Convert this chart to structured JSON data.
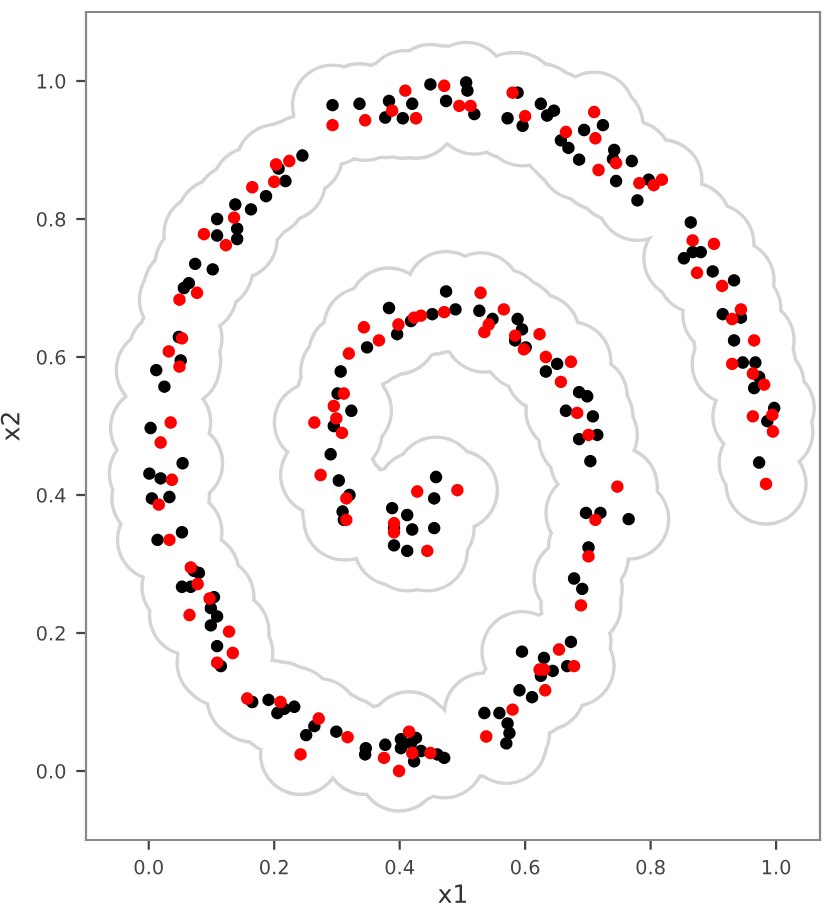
{
  "chart_data": {
    "type": "scatter",
    "xlabel": "x1",
    "ylabel": "x2",
    "xlim": [
      -0.1,
      1.07
    ],
    "ylim": [
      -0.1,
      1.1
    ],
    "xticks": [
      {
        "value": 0,
        "label": "0.0"
      },
      {
        "value": 0.2,
        "label": "0.2"
      },
      {
        "value": 0.4,
        "label": "0.4"
      },
      {
        "value": 0.6,
        "label": "0.6"
      },
      {
        "value": 0.8,
        "label": "0.8"
      },
      {
        "value": 1,
        "label": "1.0"
      }
    ],
    "yticks": [
      {
        "value": 0,
        "label": "0.0"
      },
      {
        "value": 0.2,
        "label": "0.2"
      },
      {
        "value": 0.4,
        "label": "0.4"
      },
      {
        "value": 0.6,
        "label": "0.6"
      },
      {
        "value": 0.8,
        "label": "0.8"
      },
      {
        "value": 1,
        "label": "1.0"
      }
    ],
    "grid": false,
    "legend": false,
    "marker": "circle",
    "series": [
      {
        "color": "#000000",
        "x": [
          0.293,
          0.336,
          0.383,
          0.377,
          0.405,
          0.42,
          0.449,
          0.474,
          0.245,
          0.218,
          0.207,
          0.187,
          0.163,
          0.138,
          0.109,
          0.141,
          0.109,
          0.141,
          0.074,
          0.102,
          0.056,
          0.064,
          0.048,
          0.012,
          0.025,
          0.051,
          0.003,
          0.054,
          0.383,
          0.474,
          0.452,
          0.418,
          0.396,
          0.348,
          0.306,
          0.301,
          0.323,
          0.295,
          0.29,
          0.506,
          0.508,
          0.519,
          0.588,
          0.572,
          0.596,
          0.625,
          0.646,
          0.635,
          0.694,
          0.724,
          0.657,
          0.669,
          0.686,
          0.742,
          0.74,
          0.77,
          0.745,
          0.797,
          0.779,
          0.864,
          0.867,
          0.88,
          0.853,
          0.899,
          0.933,
          0.915,
          0.944,
          0.933,
          0.947,
          0.967,
          0.973,
          0.965,
          0.997,
          0.986,
          0.973,
          0.489,
          0.527,
          0.548,
          0.588,
          0.595,
          0.584,
          0.601,
          0.633,
          0.651,
          0.686,
          0.699,
          0.665,
          0.708,
          0.715,
          0.686,
          0.704,
          0.001,
          0.019,
          0.005,
          0.033,
          0.014,
          0.053,
          0.072,
          0.08,
          0.053,
          0.067,
          0.104,
          0.099,
          0.109,
          0.099,
          0.109,
          0.115,
          0.165,
          0.191,
          0.205,
          0.216,
          0.232,
          0.264,
          0.251,
          0.299,
          0.346,
          0.345,
          0.377,
          0.402,
          0.418,
          0.426,
          0.402,
          0.434,
          0.423,
          0.46,
          0.471,
          0.303,
          0.32,
          0.309,
          0.311,
          0.388,
          0.412,
          0.391,
          0.42,
          0.391,
          0.412,
          0.455,
          0.455,
          0.458,
          0.697,
          0.72,
          0.765,
          0.701,
          0.678,
          0.691,
          0.595,
          0.63,
          0.673,
          0.667,
          0.644,
          0.625,
          0.591,
          0.611,
          0.535,
          0.559,
          0.572,
          0.575,
          0.57
        ],
        "values": [
          0.965,
          0.967,
          0.971,
          0.947,
          0.946,
          0.967,
          0.995,
          0.971,
          0.892,
          0.855,
          0.873,
          0.833,
          0.814,
          0.821,
          0.8,
          0.786,
          0.776,
          0.771,
          0.735,
          0.727,
          0.7,
          0.707,
          0.629,
          0.581,
          0.557,
          0.595,
          0.497,
          0.446,
          0.671,
          0.695,
          0.662,
          0.652,
          0.633,
          0.614,
          0.579,
          0.547,
          0.522,
          0.5,
          0.459,
          0.998,
          0.986,
          0.952,
          0.983,
          0.946,
          0.935,
          0.967,
          0.957,
          0.95,
          0.929,
          0.936,
          0.914,
          0.903,
          0.886,
          0.9,
          0.887,
          0.884,
          0.855,
          0.857,
          0.827,
          0.795,
          0.752,
          0.752,
          0.743,
          0.724,
          0.711,
          0.662,
          0.657,
          0.624,
          0.592,
          0.592,
          0.571,
          0.555,
          0.526,
          0.507,
          0.447,
          0.669,
          0.667,
          0.655,
          0.655,
          0.64,
          0.624,
          0.614,
          0.579,
          0.59,
          0.549,
          0.543,
          0.522,
          0.514,
          0.487,
          0.481,
          0.449,
          0.431,
          0.424,
          0.395,
          0.397,
          0.335,
          0.346,
          0.29,
          0.287,
          0.267,
          0.267,
          0.252,
          0.236,
          0.224,
          0.211,
          0.181,
          0.152,
          0.1,
          0.103,
          0.084,
          0.09,
          0.093,
          0.065,
          0.052,
          0.057,
          0.033,
          0.024,
          0.038,
          0.046,
          0.04,
          0.048,
          0.033,
          0.029,
          0.014,
          0.024,
          0.019,
          0.421,
          0.4,
          0.376,
          0.364,
          0.381,
          0.371,
          0.352,
          0.35,
          0.327,
          0.319,
          0.352,
          0.395,
          0.426,
          0.374,
          0.374,
          0.365,
          0.324,
          0.279,
          0.264,
          0.173,
          0.164,
          0.187,
          0.152,
          0.145,
          0.138,
          0.117,
          0.107,
          0.084,
          0.084,
          0.069,
          0.055,
          0.04
        ]
      },
      {
        "color": "#ff0000",
        "x": [
          0.409,
          0.293,
          0.345,
          0.388,
          0.426,
          0.471,
          0.203,
          0.224,
          0.2,
          0.165,
          0.088,
          0.123,
          0.136,
          0.049,
          0.077,
          0.053,
          0.032,
          0.049,
          0.035,
          0.019,
          0.343,
          0.367,
          0.319,
          0.398,
          0.423,
          0.434,
          0.471,
          0.311,
          0.295,
          0.299,
          0.308,
          0.264,
          0.495,
          0.513,
          0.58,
          0.6,
          0.71,
          0.665,
          0.712,
          0.717,
          0.745,
          0.782,
          0.805,
          0.818,
          0.867,
          0.901,
          0.874,
          0.914,
          0.944,
          0.93,
          0.965,
          0.93,
          0.963,
          0.981,
          0.963,
          0.994,
          0.995,
          0.529,
          0.566,
          0.542,
          0.535,
          0.584,
          0.623,
          0.598,
          0.633,
          0.673,
          0.657,
          0.683,
          0.701,
          0.037,
          0.016,
          0.033,
          0.067,
          0.078,
          0.097,
          0.065,
          0.128,
          0.134,
          0.109,
          0.157,
          0.21,
          0.271,
          0.317,
          0.242,
          0.375,
          0.415,
          0.42,
          0.399,
          0.449,
          0.274,
          0.315,
          0.315,
          0.391,
          0.391,
          0.428,
          0.444,
          0.492,
          0.712,
          0.747,
          0.701,
          0.689,
          0.654,
          0.623,
          0.63,
          0.678,
          0.632,
          0.58,
          0.538,
          0.984
        ],
        "values": [
          0.986,
          0.936,
          0.943,
          0.957,
          0.946,
          0.993,
          0.879,
          0.884,
          0.854,
          0.846,
          0.778,
          0.762,
          0.802,
          0.683,
          0.693,
          0.627,
          0.608,
          0.586,
          0.505,
          0.476,
          0.643,
          0.624,
          0.605,
          0.647,
          0.657,
          0.66,
          0.665,
          0.547,
          0.529,
          0.511,
          0.49,
          0.505,
          0.964,
          0.964,
          0.983,
          0.949,
          0.955,
          0.926,
          0.917,
          0.871,
          0.881,
          0.852,
          0.849,
          0.857,
          0.769,
          0.764,
          0.722,
          0.703,
          0.669,
          0.655,
          0.624,
          0.59,
          0.576,
          0.56,
          0.514,
          0.516,
          0.492,
          0.693,
          0.669,
          0.647,
          0.636,
          0.631,
          0.633,
          0.611,
          0.6,
          0.593,
          0.564,
          0.519,
          0.487,
          0.422,
          0.386,
          0.335,
          0.295,
          0.271,
          0.25,
          0.226,
          0.202,
          0.171,
          0.157,
          0.105,
          0.1,
          0.076,
          0.049,
          0.024,
          0.019,
          0.057,
          0.026,
          0.0,
          0.026,
          0.429,
          0.395,
          0.364,
          0.359,
          0.346,
          0.405,
          0.319,
          0.407,
          0.364,
          0.412,
          0.311,
          0.24,
          0.176,
          0.147,
          0.147,
          0.152,
          0.117,
          0.089,
          0.05,
          0.416
        ]
      }
    ]
  }
}
